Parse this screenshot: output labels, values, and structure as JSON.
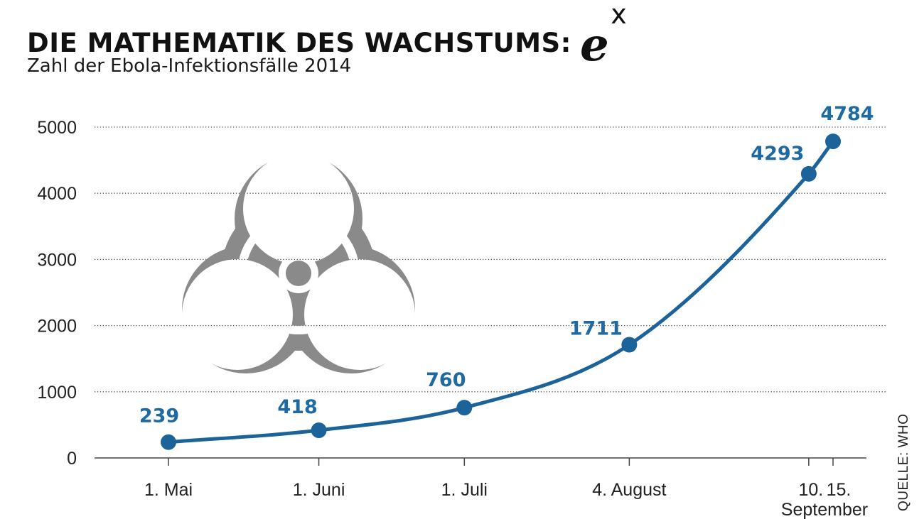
{
  "header": {
    "title": "DIE MATHEMATIK DES WACHSTUMS:",
    "formula_base": "e",
    "formula_exp": "x",
    "subtitle": "Zahl der Ebola-Infektionsfälle 2014"
  },
  "source": "QUELLE: WHO",
  "colors": {
    "line": "#1c639a",
    "label": "#1f6aa0",
    "grid": "#555555",
    "icon": "#8a8a8a"
  },
  "icon": "biohazard-icon",
  "chart_data": {
    "type": "line",
    "title": "Zahl der Ebola-Infektionsfälle 2014",
    "x": [
      "2014-05-01",
      "2014-06-01",
      "2014-07-01",
      "2014-08-04",
      "2014-09-10",
      "2014-09-15"
    ],
    "values": [
      239,
      418,
      760,
      1711,
      4293,
      4784
    ],
    "data_labels": [
      "239",
      "418",
      "760",
      "1711",
      "4293",
      "4784"
    ],
    "x_tick_labels": [
      "1. Mai",
      "1. Juni",
      "1. Juli",
      "4. August",
      "10.",
      "15."
    ],
    "x_group_label": "September",
    "y_ticks": [
      0,
      1000,
      2000,
      3000,
      4000,
      5000
    ],
    "y_tick_labels": [
      "0",
      "1000",
      "2000",
      "3000",
      "4000",
      "5000"
    ],
    "ylim": [
      0,
      5000
    ],
    "grid": "horizontal dotted",
    "legend": "none"
  }
}
